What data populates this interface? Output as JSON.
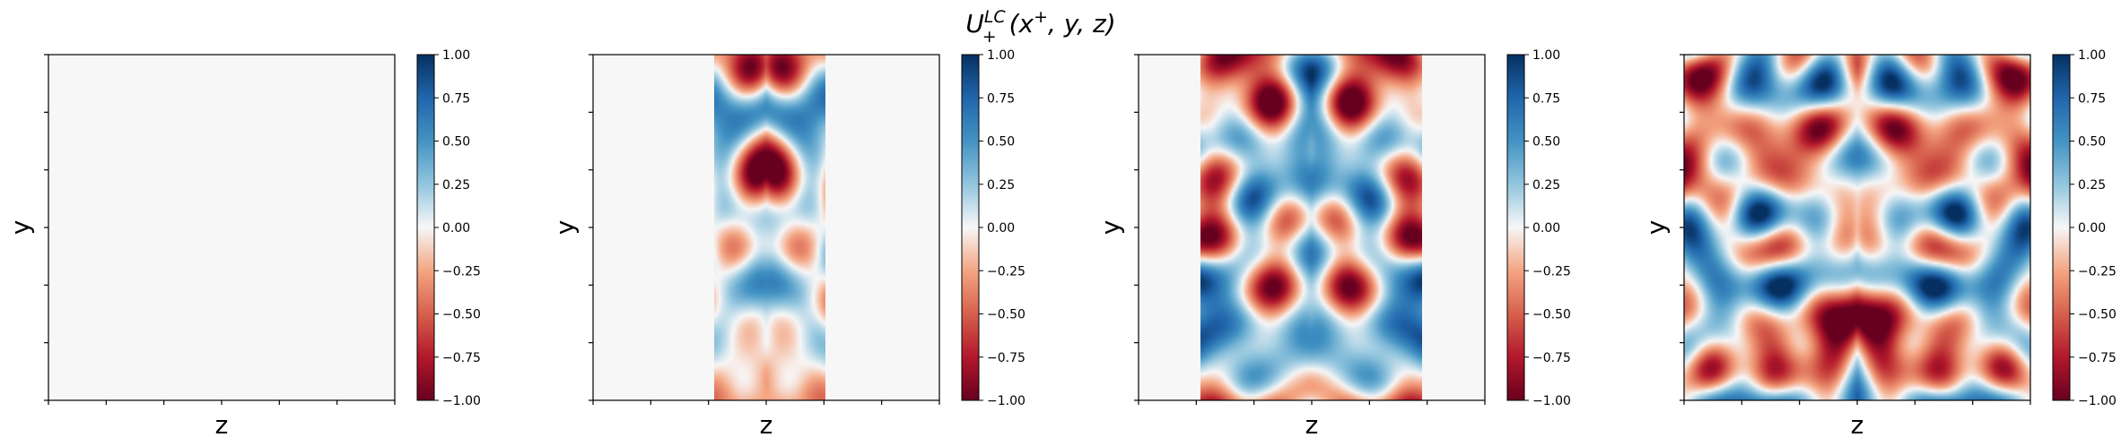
{
  "figure": {
    "title_main": "U",
    "title_sup": "LC",
    "title_sub": "+",
    "title_args_open": "(x",
    "title_args_sup": "+",
    "title_args_rest": ", y, z)"
  },
  "chart_data": [
    {
      "type": "heatmap",
      "title": "",
      "xlabel": "z",
      "ylabel": "y",
      "xlim": [
        0,
        1
      ],
      "ylim": [
        0,
        1
      ],
      "x_tick_count": 7,
      "y_tick_count": 7,
      "nonzero_band_z": [
        0,
        0
      ],
      "colormap": "RdBu",
      "background_value": 0.0,
      "colorbar": {
        "range": [
          -1.0,
          1.0
        ],
        "ticks": [
          "1.00",
          "0.75",
          "0.50",
          "0.25",
          "0.00",
          "−0.25",
          "−0.50",
          "−0.75",
          "−1.00"
        ]
      }
    },
    {
      "type": "heatmap",
      "title": "",
      "xlabel": "z",
      "ylabel": "y",
      "xlim": [
        0,
        1
      ],
      "ylim": [
        0,
        1
      ],
      "x_tick_count": 7,
      "y_tick_count": 7,
      "nonzero_band_z": [
        0.35,
        0.67
      ],
      "colormap": "RdBu",
      "background_value": 0.0,
      "colorbar": {
        "range": [
          -1.0,
          1.0
        ],
        "ticks": [
          "1.00",
          "0.75",
          "0.50",
          "0.25",
          "0.00",
          "−0.25",
          "−0.50",
          "−0.75",
          "−1.00"
        ]
      }
    },
    {
      "type": "heatmap",
      "title": "",
      "xlabel": "z",
      "ylabel": "y",
      "xlim": [
        0,
        1
      ],
      "ylim": [
        0,
        1
      ],
      "x_tick_count": 7,
      "y_tick_count": 7,
      "nonzero_band_z": [
        0.18,
        0.82
      ],
      "colormap": "RdBu",
      "background_value": 0.0,
      "colorbar": {
        "range": [
          -1.0,
          1.0
        ],
        "ticks": [
          "1.00",
          "0.75",
          "0.50",
          "0.25",
          "0.00",
          "−0.25",
          "−0.50",
          "−0.75",
          "−1.00"
        ]
      }
    },
    {
      "type": "heatmap",
      "title": "",
      "xlabel": "z",
      "ylabel": "y",
      "xlim": [
        0,
        1
      ],
      "ylim": [
        0,
        1
      ],
      "x_tick_count": 7,
      "y_tick_count": 7,
      "nonzero_band_z": [
        0.0,
        1.0
      ],
      "colormap": "RdBu",
      "background_value": 0.0,
      "colorbar": {
        "range": [
          -1.0,
          1.0
        ],
        "ticks": [
          "1.00",
          "0.75",
          "0.50",
          "0.25",
          "0.00",
          "−0.25",
          "−0.50",
          "−0.75",
          "−1.00"
        ]
      }
    }
  ]
}
